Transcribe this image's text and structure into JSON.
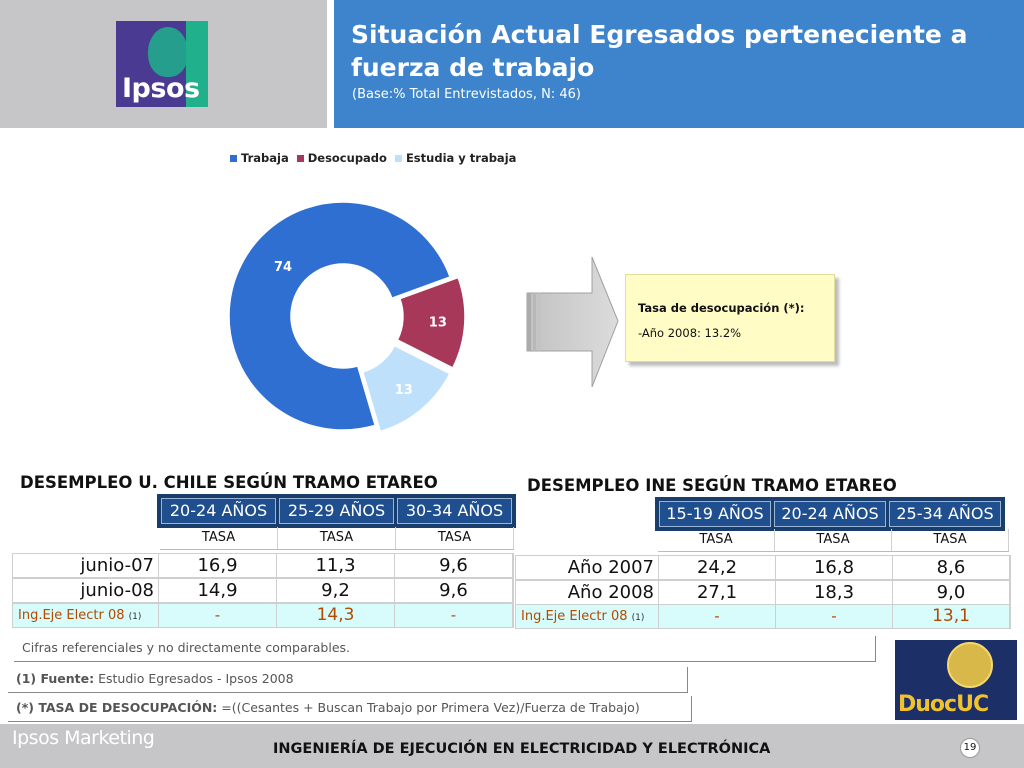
{
  "header": {
    "title_line1": "Situación Actual Egresados perteneciente a",
    "title_line2": "fuerza de trabajo",
    "subtitle": "(Base:% Total Entrevistados, N: 46)",
    "logo_text": "Ipsos"
  },
  "chart_data": {
    "type": "pie",
    "donut": true,
    "title": "",
    "legend_position": "top",
    "categories": [
      "Trabaja",
      "Desocupado",
      "Estudia y trabaja"
    ],
    "values": [
      74,
      13,
      13
    ],
    "colors": [
      "#2f6fd1",
      "#a8385a",
      "#bfe0fb"
    ],
    "data_labels": [
      "74",
      "13",
      "13"
    ]
  },
  "note": {
    "title": "Tasa de desocupación (*):",
    "line": "-Año 2008: 13.2%"
  },
  "table_uchile": {
    "title": "DESEMPLEO U. CHILE SEGÚN TRAMO ETAREO",
    "headers": [
      "20-24 AÑOS",
      "25-29 AÑOS",
      "30-34 AÑOS"
    ],
    "subheaders": [
      "TASA",
      "TASA",
      "TASA"
    ],
    "rows": [
      {
        "label": "junio-07",
        "values": [
          "16,9",
          "11,3",
          "9,6"
        ]
      },
      {
        "label": "junio-08",
        "values": [
          "14,9",
          "9,2",
          "9,6"
        ]
      }
    ],
    "ing_row": {
      "label": "Ing.Eje Electr 08",
      "ref": "(1)",
      "values": [
        "-",
        "14,3",
        "-"
      ]
    }
  },
  "table_ine": {
    "title": "DESEMPLEO INE SEGÚN TRAMO ETAREO",
    "headers": [
      "15-19 AÑOS",
      "20-24 AÑOS",
      "25-34 AÑOS"
    ],
    "subheaders": [
      "TASA",
      "TASA",
      "TASA"
    ],
    "rows": [
      {
        "label": "Año 2007",
        "values": [
          "24,2",
          "16,8",
          "8,6"
        ]
      },
      {
        "label": "Año 2008",
        "values": [
          "27,1",
          "18,3",
          "9,0"
        ]
      }
    ],
    "ing_row": {
      "label": "Ing.Eje Electr 08",
      "ref": "(1)",
      "values": [
        "-",
        "-",
        "13,1"
      ]
    }
  },
  "footnotes": {
    "referencial": "Cifras referenciales y no directamente comparables.",
    "fuente_label": "(1) Fuente:",
    "fuente_text": " Estudio Egresados -  Ipsos 2008",
    "tasa_label": "(*) TASA DE DESOCUPACIÓN:",
    "tasa_text": " =((Cesantes + Buscan Trabajo por Primera Vez)/Fuerza de Trabajo)"
  },
  "duoc_logo": "DuocUC",
  "footer": {
    "brand": "Ipsos Marketing",
    "program": "INGENIERÍA DE EJECUCIÓN EN ELECTRICIDAD Y ELECTRÓNICA",
    "page": "19"
  }
}
